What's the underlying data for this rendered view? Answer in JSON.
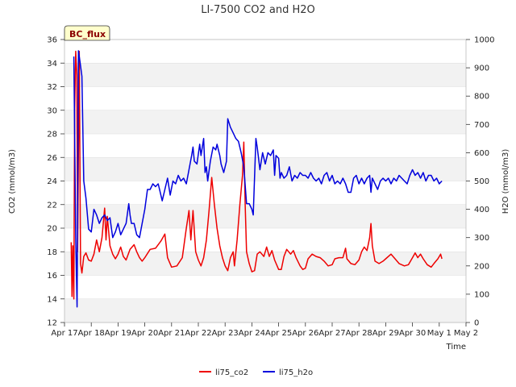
{
  "chart_data": {
    "type": "line",
    "title": "LI-7500 CO2 and H2O",
    "badge": "BC_flux",
    "xlabel": "Time",
    "ylabel": "CO2 (mmol/m3)",
    "y2label": "H2O (mmol/m3)",
    "xlim": [
      0,
      15
    ],
    "ylim": [
      12,
      36
    ],
    "y2lim": [
      0,
      1000
    ],
    "x_ticks": [
      {
        "x": 0,
        "label": "Apr 17"
      },
      {
        "x": 1,
        "label": "Apr 18"
      },
      {
        "x": 2,
        "label": "Apr 19"
      },
      {
        "x": 3,
        "label": "Apr 20"
      },
      {
        "x": 4,
        "label": "Apr 21"
      },
      {
        "x": 5,
        "label": "Apr 22"
      },
      {
        "x": 6,
        "label": "Apr 23"
      },
      {
        "x": 7,
        "label": "Apr 24"
      },
      {
        "x": 8,
        "label": "Apr 25"
      },
      {
        "x": 9,
        "label": "Apr 26"
      },
      {
        "x": 10,
        "label": "Apr 27"
      },
      {
        "x": 11,
        "label": "Apr 28"
      },
      {
        "x": 12,
        "label": "Apr 29"
      },
      {
        "x": 13,
        "label": "Apr 30"
      },
      {
        "x": 14,
        "label": "May 1"
      },
      {
        "x": 15,
        "label": "May 2"
      }
    ],
    "y_ticks": [
      "12",
      "14",
      "16",
      "18",
      "20",
      "22",
      "24",
      "26",
      "28",
      "30",
      "32",
      "34",
      "36"
    ],
    "y2_ticks": [
      "0",
      "100",
      "200",
      "300",
      "400",
      "500",
      "600",
      "700",
      "800",
      "900",
      "1000"
    ],
    "series": [
      {
        "name": "li75_co2",
        "axis": "left",
        "color": "#ee0000",
        "points": [
          [
            0.25,
            18.8
          ],
          [
            0.28,
            14.2
          ],
          [
            0.31,
            18.5
          ],
          [
            0.35,
            14
          ],
          [
            0.38,
            30
          ],
          [
            0.42,
            35
          ],
          [
            0.46,
            33
          ],
          [
            0.49,
            18
          ],
          [
            0.55,
            35
          ],
          [
            0.6,
            17
          ],
          [
            0.65,
            16.2
          ],
          [
            0.72,
            17.6
          ],
          [
            0.8,
            17.9
          ],
          [
            0.9,
            17.3
          ],
          [
            1.0,
            17.2
          ],
          [
            1.1,
            17.8
          ],
          [
            1.2,
            19
          ],
          [
            1.3,
            18
          ],
          [
            1.4,
            19.2
          ],
          [
            1.5,
            21.7
          ],
          [
            1.55,
            19
          ],
          [
            1.6,
            21
          ],
          [
            1.7,
            18.5
          ],
          [
            1.8,
            17.8
          ],
          [
            1.9,
            17.4
          ],
          [
            2.0,
            17.8
          ],
          [
            2.1,
            18.4
          ],
          [
            2.2,
            17.6
          ],
          [
            2.3,
            17.3
          ],
          [
            2.45,
            18.2
          ],
          [
            2.6,
            18.6
          ],
          [
            2.7,
            18
          ],
          [
            2.8,
            17.5
          ],
          [
            2.9,
            17.2
          ],
          [
            3.0,
            17.5
          ],
          [
            3.2,
            18.2
          ],
          [
            3.4,
            18.3
          ],
          [
            3.6,
            18.9
          ],
          [
            3.75,
            19.5
          ],
          [
            3.85,
            17.5
          ],
          [
            4.0,
            16.7
          ],
          [
            4.2,
            16.8
          ],
          [
            4.4,
            17.5
          ],
          [
            4.55,
            20
          ],
          [
            4.65,
            21.5
          ],
          [
            4.72,
            19
          ],
          [
            4.8,
            21.5
          ],
          [
            4.9,
            18
          ],
          [
            5.0,
            17.3
          ],
          [
            5.1,
            16.8
          ],
          [
            5.2,
            17.5
          ],
          [
            5.3,
            19
          ],
          [
            5.4,
            21.5
          ],
          [
            5.5,
            24.3
          ],
          [
            5.6,
            22
          ],
          [
            5.7,
            20
          ],
          [
            5.8,
            18.5
          ],
          [
            5.9,
            17.5
          ],
          [
            6.0,
            16.8
          ],
          [
            6.1,
            16.4
          ],
          [
            6.2,
            17.5
          ],
          [
            6.3,
            18
          ],
          [
            6.35,
            16.8
          ],
          [
            6.45,
            19
          ],
          [
            6.55,
            22
          ],
          [
            6.65,
            24.5
          ],
          [
            6.7,
            27.3
          ],
          [
            6.75,
            22
          ],
          [
            6.8,
            18
          ],
          [
            6.9,
            17
          ],
          [
            7.0,
            16.3
          ],
          [
            7.1,
            16.4
          ],
          [
            7.2,
            17.8
          ],
          [
            7.3,
            18
          ],
          [
            7.45,
            17.6
          ],
          [
            7.55,
            18.4
          ],
          [
            7.65,
            17.6
          ],
          [
            7.75,
            18.1
          ],
          [
            7.85,
            17.3
          ],
          [
            8.0,
            16.5
          ],
          [
            8.1,
            16.5
          ],
          [
            8.2,
            17.6
          ],
          [
            8.3,
            18.2
          ],
          [
            8.45,
            17.8
          ],
          [
            8.55,
            18.1
          ],
          [
            8.65,
            17.5
          ],
          [
            8.8,
            16.8
          ],
          [
            8.9,
            16.5
          ],
          [
            9.0,
            16.6
          ],
          [
            9.1,
            17.4
          ],
          [
            9.25,
            17.8
          ],
          [
            9.4,
            17.6
          ],
          [
            9.55,
            17.5
          ],
          [
            9.7,
            17.2
          ],
          [
            9.85,
            16.8
          ],
          [
            10.0,
            16.9
          ],
          [
            10.1,
            17.4
          ],
          [
            10.25,
            17.5
          ],
          [
            10.4,
            17.5
          ],
          [
            10.5,
            18.3
          ],
          [
            10.55,
            17.4
          ],
          [
            10.7,
            17
          ],
          [
            10.85,
            16.9
          ],
          [
            11.0,
            17.3
          ],
          [
            11.1,
            18
          ],
          [
            11.2,
            18.4
          ],
          [
            11.3,
            18.1
          ],
          [
            11.4,
            19.2
          ],
          [
            11.45,
            20.4
          ],
          [
            11.5,
            18.5
          ],
          [
            11.6,
            17.2
          ],
          [
            11.75,
            17
          ],
          [
            11.9,
            17.2
          ],
          [
            12.0,
            17.4
          ],
          [
            12.2,
            17.8
          ],
          [
            12.35,
            17.4
          ],
          [
            12.5,
            17
          ],
          [
            12.7,
            16.8
          ],
          [
            12.85,
            16.9
          ],
          [
            13.0,
            17.5
          ],
          [
            13.1,
            17.9
          ],
          [
            13.2,
            17.5
          ],
          [
            13.3,
            17.8
          ],
          [
            13.4,
            17.4
          ],
          [
            13.55,
            16.9
          ],
          [
            13.7,
            16.7
          ],
          [
            13.8,
            17
          ],
          [
            13.95,
            17.4
          ],
          [
            14.05,
            17.8
          ],
          [
            14.1,
            17.4
          ]
        ]
      },
      {
        "name": "li75_h2o",
        "axis": "right",
        "color": "#0000dd",
        "points": [
          [
            0.35,
            940
          ],
          [
            0.42,
            300
          ],
          [
            0.47,
            55
          ],
          [
            0.52,
            960
          ],
          [
            0.58,
            920
          ],
          [
            0.65,
            870
          ],
          [
            0.72,
            500
          ],
          [
            0.8,
            440
          ],
          [
            0.9,
            330
          ],
          [
            1.0,
            320
          ],
          [
            1.1,
            400
          ],
          [
            1.2,
            380
          ],
          [
            1.3,
            350
          ],
          [
            1.4,
            370
          ],
          [
            1.5,
            380
          ],
          [
            1.6,
            360
          ],
          [
            1.7,
            370
          ],
          [
            1.8,
            300
          ],
          [
            1.9,
            320
          ],
          [
            2.0,
            350
          ],
          [
            2.1,
            310
          ],
          [
            2.2,
            330
          ],
          [
            2.3,
            350
          ],
          [
            2.4,
            420
          ],
          [
            2.45,
            380
          ],
          [
            2.5,
            350
          ],
          [
            2.6,
            350
          ],
          [
            2.7,
            310
          ],
          [
            2.8,
            300
          ],
          [
            2.9,
            350
          ],
          [
            3.0,
            400
          ],
          [
            3.1,
            470
          ],
          [
            3.2,
            470
          ],
          [
            3.3,
            490
          ],
          [
            3.4,
            480
          ],
          [
            3.5,
            490
          ],
          [
            3.55,
            470
          ],
          [
            3.65,
            430
          ],
          [
            3.75,
            470
          ],
          [
            3.85,
            510
          ],
          [
            3.95,
            450
          ],
          [
            4.05,
            500
          ],
          [
            4.15,
            490
          ],
          [
            4.25,
            520
          ],
          [
            4.35,
            500
          ],
          [
            4.45,
            510
          ],
          [
            4.55,
            490
          ],
          [
            4.65,
            540
          ],
          [
            4.75,
            590
          ],
          [
            4.8,
            620
          ],
          [
            4.85,
            570
          ],
          [
            4.95,
            560
          ],
          [
            5.05,
            630
          ],
          [
            5.1,
            590
          ],
          [
            5.2,
            650
          ],
          [
            5.25,
            530
          ],
          [
            5.3,
            550
          ],
          [
            5.35,
            500
          ],
          [
            5.45,
            570
          ],
          [
            5.55,
            620
          ],
          [
            5.65,
            610
          ],
          [
            5.7,
            630
          ],
          [
            5.8,
            590
          ],
          [
            5.85,
            560
          ],
          [
            5.95,
            530
          ],
          [
            6.05,
            570
          ],
          [
            6.1,
            720
          ],
          [
            6.2,
            690
          ],
          [
            6.3,
            670
          ],
          [
            6.4,
            650
          ],
          [
            6.5,
            640
          ],
          [
            6.6,
            600
          ],
          [
            6.7,
            550
          ],
          [
            6.8,
            420
          ],
          [
            6.9,
            420
          ],
          [
            7.0,
            400
          ],
          [
            7.05,
            380
          ],
          [
            7.15,
            650
          ],
          [
            7.2,
            620
          ],
          [
            7.3,
            540
          ],
          [
            7.4,
            600
          ],
          [
            7.5,
            560
          ],
          [
            7.6,
            600
          ],
          [
            7.7,
            590
          ],
          [
            7.8,
            610
          ],
          [
            7.85,
            520
          ],
          [
            7.9,
            590
          ],
          [
            8.0,
            580
          ],
          [
            8.05,
            510
          ],
          [
            8.1,
            530
          ],
          [
            8.2,
            510
          ],
          [
            8.3,
            520
          ],
          [
            8.4,
            550
          ],
          [
            8.5,
            500
          ],
          [
            8.6,
            520
          ],
          [
            8.7,
            510
          ],
          [
            8.8,
            530
          ],
          [
            8.9,
            520
          ],
          [
            9.0,
            520
          ],
          [
            9.1,
            510
          ],
          [
            9.2,
            530
          ],
          [
            9.3,
            510
          ],
          [
            9.4,
            500
          ],
          [
            9.5,
            510
          ],
          [
            9.6,
            490
          ],
          [
            9.7,
            520
          ],
          [
            9.8,
            530
          ],
          [
            9.9,
            500
          ],
          [
            10.0,
            520
          ],
          [
            10.1,
            490
          ],
          [
            10.2,
            500
          ],
          [
            10.3,
            490
          ],
          [
            10.4,
            510
          ],
          [
            10.5,
            490
          ],
          [
            10.6,
            460
          ],
          [
            10.7,
            460
          ],
          [
            10.8,
            510
          ],
          [
            10.9,
            520
          ],
          [
            11.0,
            490
          ],
          [
            11.1,
            510
          ],
          [
            11.2,
            490
          ],
          [
            11.3,
            510
          ],
          [
            11.4,
            520
          ],
          [
            11.45,
            460
          ],
          [
            11.5,
            510
          ],
          [
            11.6,
            490
          ],
          [
            11.7,
            470
          ],
          [
            11.8,
            500
          ],
          [
            11.9,
            510
          ],
          [
            12.0,
            500
          ],
          [
            12.1,
            510
          ],
          [
            12.2,
            490
          ],
          [
            12.3,
            510
          ],
          [
            12.4,
            500
          ],
          [
            12.5,
            520
          ],
          [
            12.6,
            510
          ],
          [
            12.7,
            500
          ],
          [
            12.8,
            490
          ],
          [
            12.9,
            520
          ],
          [
            13.0,
            540
          ],
          [
            13.1,
            520
          ],
          [
            13.2,
            530
          ],
          [
            13.3,
            510
          ],
          [
            13.4,
            530
          ],
          [
            13.5,
            500
          ],
          [
            13.6,
            520
          ],
          [
            13.7,
            520
          ],
          [
            13.8,
            500
          ],
          [
            13.9,
            510
          ],
          [
            14.0,
            490
          ],
          [
            14.1,
            500
          ]
        ]
      }
    ]
  }
}
